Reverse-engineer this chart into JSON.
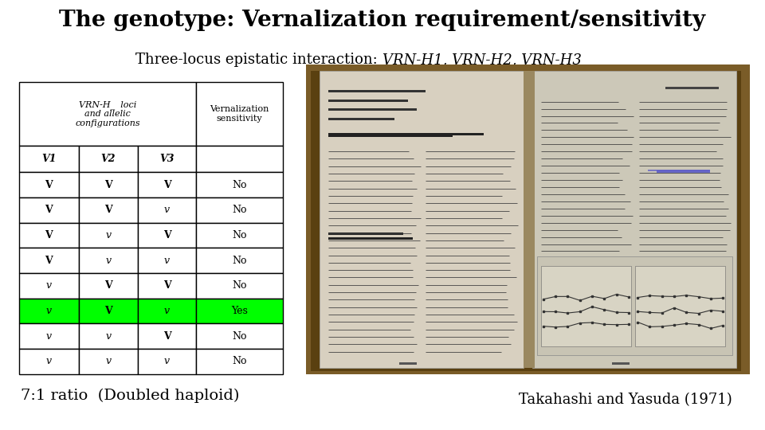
{
  "title": "The genotype: Vernalization requirement/sensitivity",
  "subtitle_plain": "Three-locus epistatic interaction: ",
  "subtitle_italic": "VRN-H1, VRN-H2, VRN-H3",
  "title_fontsize": 20,
  "subtitle_fontsize": 13,
  "table_rows": [
    [
      "V",
      "V",
      "V",
      "No"
    ],
    [
      "V",
      "V",
      "v",
      "No"
    ],
    [
      "V",
      "v",
      "V",
      "No"
    ],
    [
      "V",
      "v",
      "v",
      "No"
    ],
    [
      "v",
      "V",
      "V",
      "No"
    ],
    [
      "v",
      "V",
      "v",
      "Yes"
    ],
    [
      "v",
      "v",
      "V",
      "No"
    ],
    [
      "v",
      "v",
      "v",
      "No"
    ]
  ],
  "highlighted_row": 5,
  "highlight_color": "#00ff00",
  "ratio_text": "7:1 ratio  (Doubled haploid)",
  "ratio_fontsize": 14,
  "citation": "Takahashi and Yasuda (1971)",
  "citation_fontsize": 13,
  "bg_color": "#ffffff",
  "book_outer": "#8B6914",
  "book_left_page": "#e8e2d5",
  "book_right_page": "#ddd8ca",
  "book_spine": "#6b5010"
}
